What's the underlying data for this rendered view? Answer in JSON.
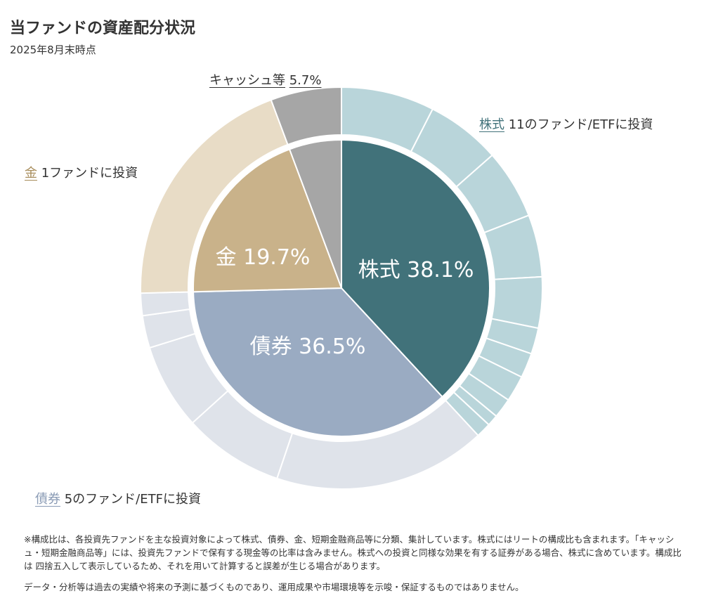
{
  "title": "当ファンドの資産配分状況",
  "subtitle": "2025年8月末時点",
  "chart_data": {
    "type": "pie",
    "subtype": "nested-donut",
    "unit": "%",
    "inner": [
      {
        "name": "株式",
        "value": 38.1,
        "label": "株式 38.1%",
        "color": "#41727a"
      },
      {
        "name": "債券",
        "value": 36.5,
        "label": "債券 36.5%",
        "color": "#9aabc2"
      },
      {
        "name": "金",
        "value": 19.7,
        "label": "金 19.7%",
        "color": "#c9b28a"
      },
      {
        "name": "キャッシュ等",
        "value": 5.7,
        "label": "",
        "color": "#a6a6a6"
      }
    ],
    "outer": [
      {
        "group": "株式",
        "color": "#b9d5da",
        "values": [
          7.5,
          6.0,
          5.6,
          5.0,
          4.1,
          2.1,
          2.0,
          2.1,
          1.6,
          0.9,
          1.2
        ]
      },
      {
        "group": "債券",
        "color": "#dfe3ea",
        "values": [
          17.1,
          8.1,
          6.9,
          2.6,
          1.8
        ]
      },
      {
        "group": "金",
        "color": "#e8dcc6",
        "values": [
          19.7
        ]
      },
      {
        "group": "キャッシュ等",
        "color": "#a6a6a6",
        "values": [
          5.7
        ]
      }
    ],
    "annotations": {
      "cash": {
        "name": "キャッシュ等",
        "text": "5.7%"
      },
      "stocks": {
        "name": "株式",
        "text": "11のファンド/ETFに投資",
        "color": "#41727a"
      },
      "gold": {
        "name": "金",
        "text": "1ファンドに投資",
        "color": "#a88d5c"
      },
      "bonds": {
        "name": "債券",
        "text": "5のファンド/ETFに投資",
        "color": "#8a9bb5"
      }
    }
  },
  "notes": {
    "line1": "※構成比は、各投資先ファンドを主な投資対象によって株式、債券、金、短期金融商品等に分類、集計しています。株式にはリートの構成比も含まれます。「キャッシュ・短期金融商品等」には、投資先ファンドで保有する現金等の比率は含みません。株式への投資と同様な効果を有する証券がある場合、株式に含めています。構成比は 四捨五入して表示しているため、それを用いて計算すると誤差が生じる場合があります。",
    "line2": "データ・分析等は過去の実績や将来の予測に基づくものであり、運用成果や市場環境等を示唆・保証するものではありません。"
  }
}
